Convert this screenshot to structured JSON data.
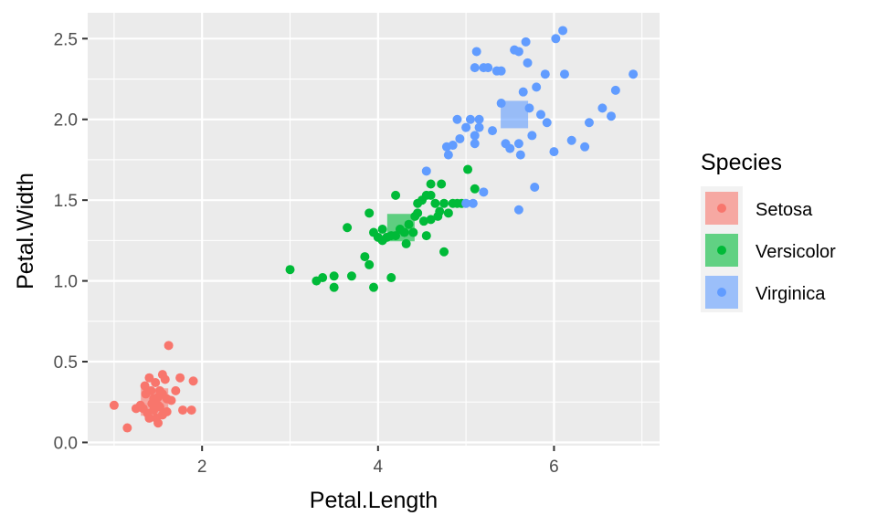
{
  "chart_data": {
    "type": "scatter",
    "title": "",
    "xlabel": "Petal.Length",
    "ylabel": "Petal.Width",
    "xlim": [
      0.7,
      7.2
    ],
    "ylim": [
      -0.02,
      2.66
    ],
    "x_ticks": [
      2,
      4,
      6
    ],
    "x_tick_labels": [
      "2",
      "4",
      "6"
    ],
    "y_ticks": [
      0.0,
      0.5,
      1.0,
      1.5,
      2.0,
      2.5
    ],
    "y_tick_labels": [
      "0.0",
      "0.5",
      "1.0",
      "1.5",
      "2.0",
      "2.5"
    ],
    "grid": true,
    "panel_background": "#ebebeb",
    "legend": {
      "title": "Species",
      "placement": "right",
      "entries": [
        "Setosa",
        "Versicolor",
        "Virginica"
      ]
    },
    "series": [
      {
        "name": "Setosa",
        "color": "#F8766D",
        "center": [
          1.46,
          0.25
        ],
        "points": [
          [
            1.0,
            0.23
          ],
          [
            1.15,
            0.09
          ],
          [
            1.25,
            0.21
          ],
          [
            1.3,
            0.23
          ],
          [
            1.35,
            0.35
          ],
          [
            1.4,
            0.4
          ],
          [
            1.42,
            0.32
          ],
          [
            1.45,
            0.2
          ],
          [
            1.48,
            0.15
          ],
          [
            1.5,
            0.28
          ],
          [
            1.5,
            0.12
          ],
          [
            1.55,
            0.42
          ],
          [
            1.58,
            0.39
          ],
          [
            1.6,
            0.19
          ],
          [
            1.62,
            0.6
          ],
          [
            1.65,
            0.26
          ],
          [
            1.7,
            0.32
          ],
          [
            1.75,
            0.4
          ],
          [
            1.78,
            0.2
          ],
          [
            1.9,
            0.38
          ],
          [
            1.88,
            0.2
          ],
          [
            1.52,
            0.22
          ],
          [
            1.45,
            0.27
          ],
          [
            1.38,
            0.18
          ],
          [
            1.33,
            0.21
          ],
          [
            1.47,
            0.37
          ],
          [
            1.55,
            0.17
          ],
          [
            1.6,
            0.27
          ],
          [
            1.4,
            0.15
          ],
          [
            1.52,
            0.32
          ],
          [
            1.43,
            0.24
          ],
          [
            1.5,
            0.23
          ],
          [
            1.36,
            0.3
          ],
          [
            1.55,
            0.3
          ]
        ]
      },
      {
        "name": "Versicolor",
        "color": "#00BA38",
        "center": [
          4.26,
          1.33
        ],
        "points": [
          [
            3.0,
            1.07
          ],
          [
            3.3,
            1.0
          ],
          [
            3.37,
            1.02
          ],
          [
            3.5,
            1.03
          ],
          [
            3.5,
            0.96
          ],
          [
            3.65,
            1.33
          ],
          [
            3.7,
            1.03
          ],
          [
            3.85,
            1.15
          ],
          [
            3.9,
            1.1
          ],
          [
            3.9,
            1.42
          ],
          [
            3.95,
            0.96
          ],
          [
            3.95,
            1.3
          ],
          [
            4.0,
            1.27
          ],
          [
            4.05,
            1.25
          ],
          [
            4.1,
            1.27
          ],
          [
            4.15,
            1.02
          ],
          [
            4.15,
            1.28
          ],
          [
            4.2,
            1.53
          ],
          [
            4.25,
            1.32
          ],
          [
            4.3,
            1.3
          ],
          [
            4.32,
            1.23
          ],
          [
            4.35,
            1.35
          ],
          [
            4.4,
            1.3
          ],
          [
            4.42,
            1.4
          ],
          [
            4.45,
            1.48
          ],
          [
            4.5,
            1.5
          ],
          [
            4.52,
            1.37
          ],
          [
            4.55,
            1.53
          ],
          [
            4.55,
            1.28
          ],
          [
            4.6,
            1.38
          ],
          [
            4.6,
            1.6
          ],
          [
            4.65,
            1.48
          ],
          [
            4.7,
            1.43
          ],
          [
            4.72,
            1.6
          ],
          [
            4.75,
            1.18
          ],
          [
            4.75,
            1.48
          ],
          [
            4.8,
            1.42
          ],
          [
            4.85,
            1.48
          ],
          [
            4.9,
            1.48
          ],
          [
            4.95,
            1.48
          ],
          [
            5.02,
            1.69
          ],
          [
            5.1,
            1.57
          ],
          [
            4.05,
            1.32
          ],
          [
            4.2,
            1.28
          ],
          [
            4.45,
            1.42
          ],
          [
            4.6,
            1.53
          ],
          [
            4.68,
            1.4
          ]
        ]
      },
      {
        "name": "Virginica",
        "color": "#619CFF",
        "center": [
          5.55,
          2.03
        ],
        "points": [
          [
            4.55,
            1.68
          ],
          [
            4.78,
            1.83
          ],
          [
            4.8,
            1.78
          ],
          [
            4.85,
            1.84
          ],
          [
            4.9,
            2.0
          ],
          [
            4.93,
            1.88
          ],
          [
            5.0,
            1.95
          ],
          [
            5.0,
            1.48
          ],
          [
            5.05,
            2.0
          ],
          [
            5.08,
            1.48
          ],
          [
            5.1,
            1.85
          ],
          [
            5.1,
            2.32
          ],
          [
            5.1,
            1.9
          ],
          [
            5.12,
            2.42
          ],
          [
            5.15,
            1.95
          ],
          [
            5.2,
            2.32
          ],
          [
            5.2,
            1.55
          ],
          [
            5.25,
            2.32
          ],
          [
            5.3,
            1.93
          ],
          [
            5.35,
            2.3
          ],
          [
            5.4,
            2.3
          ],
          [
            5.45,
            1.85
          ],
          [
            5.5,
            1.82
          ],
          [
            5.55,
            2.43
          ],
          [
            5.6,
            2.42
          ],
          [
            5.62,
            1.78
          ],
          [
            5.6,
            1.44
          ],
          [
            5.65,
            2.17
          ],
          [
            5.68,
            2.48
          ],
          [
            5.7,
            2.35
          ],
          [
            5.72,
            2.07
          ],
          [
            5.78,
            1.58
          ],
          [
            5.8,
            2.2
          ],
          [
            5.85,
            2.03
          ],
          [
            5.9,
            2.28
          ],
          [
            5.92,
            1.98
          ],
          [
            6.0,
            1.8
          ],
          [
            6.02,
            2.5
          ],
          [
            6.1,
            2.55
          ],
          [
            6.12,
            2.28
          ],
          [
            6.2,
            1.87
          ],
          [
            6.35,
            1.83
          ],
          [
            6.4,
            1.98
          ],
          [
            6.55,
            2.07
          ],
          [
            6.65,
            2.02
          ],
          [
            6.7,
            2.18
          ],
          [
            6.9,
            2.28
          ],
          [
            5.6,
            1.85
          ],
          [
            5.15,
            2.0
          ],
          [
            5.4,
            2.1
          ],
          [
            5.75,
            1.9
          ]
        ]
      }
    ]
  }
}
